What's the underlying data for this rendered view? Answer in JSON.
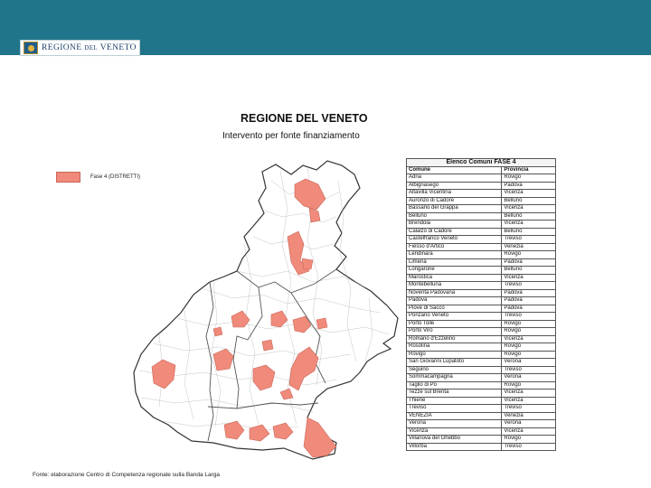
{
  "header": {
    "logo_text": "REGIONE DEL VENETO",
    "logo_main": "REGIONE",
    "logo_small": "DEL",
    "logo_end": "VENETO"
  },
  "map": {
    "title": "REGIONE DEL VENETO",
    "subtitle": "Intervento per fonte finanziamento",
    "legend": [
      {
        "label": "Fase 4 (DISTRETTI)",
        "color": "#f08a7a"
      }
    ],
    "fill_color": "#f08a7a",
    "border_color": "#555555"
  },
  "table": {
    "caption": "Elenco Comuni FASE 4",
    "columns": [
      "Comune",
      "Provincia"
    ],
    "rows": [
      [
        "Adria",
        "Rovigo"
      ],
      [
        "Albignasego",
        "Padova"
      ],
      [
        "Altavilla Vicentina",
        "Vicenza"
      ],
      [
        "Auronzo di Cadore",
        "Belluno"
      ],
      [
        "Bassano del Grappa",
        "Vicenza"
      ],
      [
        "Belluno",
        "Belluno"
      ],
      [
        "Brendola",
        "Vicenza"
      ],
      [
        "Calalzo di Cadore",
        "Belluno"
      ],
      [
        "Castelfranco Veneto",
        "Treviso"
      ],
      [
        "Fiesso d'Artico",
        "Venezia"
      ],
      [
        "Lendinara",
        "Rovigo"
      ],
      [
        "Limena",
        "Padova"
      ],
      [
        "Longarone",
        "Belluno"
      ],
      [
        "Marostica",
        "Vicenza"
      ],
      [
        "Montebelluna",
        "Treviso"
      ],
      [
        "Noventa Padovana",
        "Padova"
      ],
      [
        "Padova",
        "Padova"
      ],
      [
        "Piove di Sacco",
        "Padova"
      ],
      [
        "Ponzano Veneto",
        "Treviso"
      ],
      [
        "Porto Tolle",
        "Rovigo"
      ],
      [
        "Porto Viro",
        "Rovigo"
      ],
      [
        "Romano d'Ezzelino",
        "Vicenza"
      ],
      [
        "Rosolina",
        "Rovigo"
      ],
      [
        "Rovigo",
        "Rovigo"
      ],
      [
        "San Giovanni Lupatoto",
        "Verona"
      ],
      [
        "Seguino",
        "Treviso"
      ],
      [
        "Sommacampagna",
        "Verona"
      ],
      [
        "Taglio di Po",
        "Rovigo"
      ],
      [
        "Tezze sul Brenta",
        "Vicenza"
      ],
      [
        "Thiene",
        "Vicenza"
      ],
      [
        "Treviso",
        "Treviso"
      ],
      [
        "VENEZIA",
        "Venezia"
      ],
      [
        "Verona",
        "Verona"
      ],
      [
        "Vicenza",
        "Vicenza"
      ],
      [
        "Villanova del Ghebbo",
        "Rovigo"
      ],
      [
        "Villorba",
        "Treviso"
      ]
    ]
  },
  "source": "Fonte: elaborazione Centro di Competenza regionale sulla Banda Larga"
}
